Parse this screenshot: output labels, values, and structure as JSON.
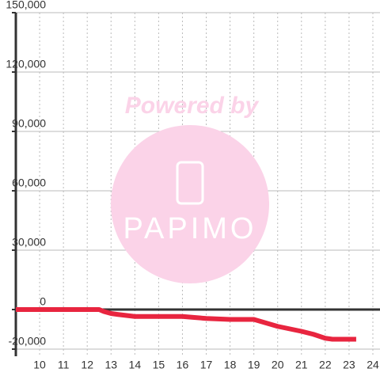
{
  "chart_data": {
    "type": "line",
    "watermark": {
      "line1": "Powered by",
      "line2": "PAPIMO"
    },
    "x": [
      9,
      12.5,
      12.7,
      13,
      13.3,
      14,
      15,
      16,
      16.5,
      17,
      18,
      19,
      20,
      21,
      21.5,
      22,
      22.3,
      23.3
    ],
    "series": [
      {
        "color": "#e8253f",
        "values": [
          0,
          0,
          -1000,
          -2000,
          -2500,
          -3500,
          -3500,
          -3500,
          -4000,
          -4500,
          -5000,
          -5000,
          -8500,
          -11000,
          -12500,
          -14500,
          -15000,
          -15000
        ]
      }
    ],
    "xlim": [
      9,
      24.3
    ],
    "xticks": [
      10,
      11,
      12,
      13,
      14,
      15,
      16,
      17,
      18,
      19,
      20,
      21,
      22,
      23,
      24
    ],
    "ylim": [
      -20000,
      150000
    ],
    "yticks": [
      {
        "value": -20000,
        "label": "-20,000"
      },
      0,
      {
        "value": 30000,
        "label": "30,000"
      },
      {
        "value": 60000,
        "label": "60,000"
      },
      {
        "value": 90000,
        "label": "90,000"
      },
      {
        "value": 120000,
        "label": "120,000"
      },
      {
        "value": 150000,
        "label": "150,000"
      }
    ],
    "grid": true
  }
}
